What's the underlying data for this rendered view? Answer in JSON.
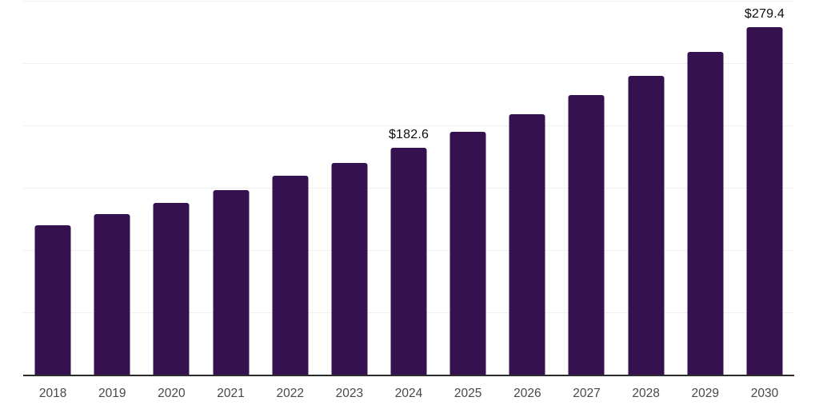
{
  "chart_data": {
    "type": "bar",
    "title": "",
    "xlabel": "",
    "ylabel": "",
    "categories": [
      "2018",
      "2019",
      "2020",
      "2021",
      "2022",
      "2023",
      "2024",
      "2025",
      "2026",
      "2027",
      "2028",
      "2029",
      "2030"
    ],
    "values": [
      120.7,
      129.6,
      138.6,
      148.8,
      160.3,
      170.5,
      182.6,
      195.6,
      209.4,
      224.7,
      240.7,
      259.6,
      279.4
    ],
    "data_labels": {
      "2024": "$182.6",
      "2030": "$279.4"
    },
    "ylim": [
      0,
      300
    ],
    "gridline_step": 50,
    "grid": "horizontal",
    "legend_position": "none",
    "colors": {
      "bar": "#351150",
      "value_label": "#0d0d0d",
      "tick_label": "#484848",
      "gridline": "#f0f0f0",
      "axis_line": "#2b2b2b",
      "background": "#ffffff"
    }
  }
}
